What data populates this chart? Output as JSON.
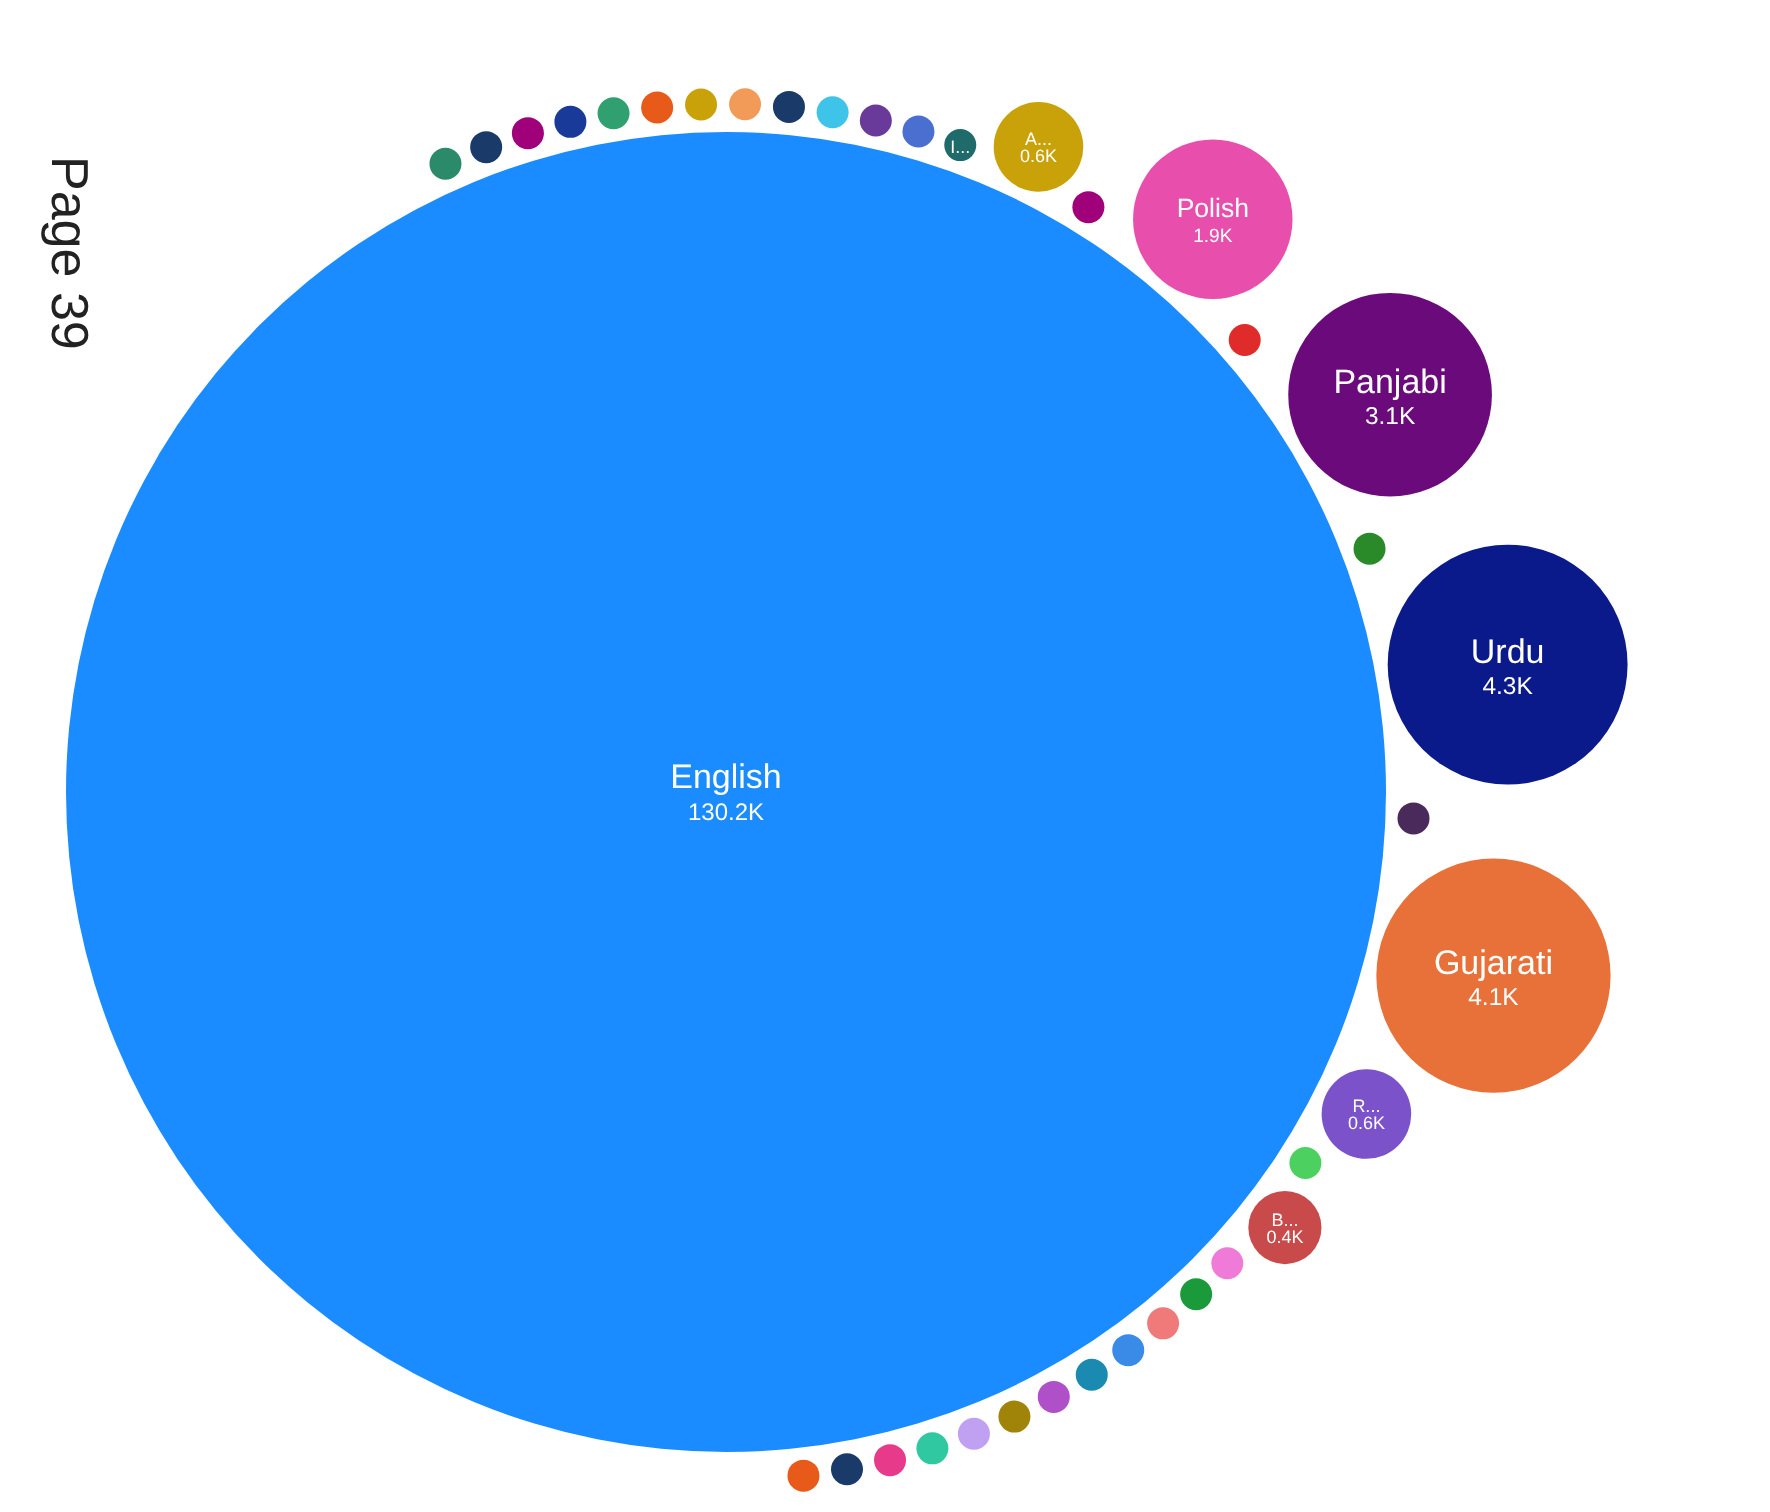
{
  "chart_data": {
    "type": "other",
    "categories": [
      "English",
      null,
      null,
      null,
      null,
      null,
      null,
      null,
      null,
      null,
      null,
      null,
      null,
      "I...",
      "A...",
      null,
      "Polish",
      null,
      "Panjabi",
      null,
      "Urdu",
      null,
      "Gujarati",
      "R...",
      null,
      "B...",
      null,
      null,
      null,
      null,
      null,
      null,
      null,
      null,
      null,
      null,
      null,
      null
    ],
    "values": [
      130.2,
      null,
      null,
      null,
      null,
      null,
      null,
      null,
      null,
      null,
      null,
      null,
      null,
      null,
      0.6,
      null,
      1.9,
      null,
      3.1,
      null,
      4.3,
      null,
      4.1,
      0.6,
      null,
      0.4,
      null,
      null,
      null,
      null,
      null,
      null,
      null,
      null,
      null,
      null,
      null,
      null
    ],
    "value_labels": [
      "130.2K",
      null,
      null,
      null,
      null,
      null,
      null,
      null,
      null,
      null,
      null,
      null,
      null,
      null,
      "0.6K",
      null,
      "1.9K",
      null,
      "3.1K",
      null,
      "4.3K",
      null,
      "4.1K",
      "0.6K",
      null,
      "0.4K",
      null,
      null,
      null,
      null,
      null,
      null,
      null,
      null,
      null,
      null,
      null,
      null
    ],
    "colors": [
      "#1a8cff",
      "#2a8a6a",
      "#1a3a6a",
      "#a0007a",
      "#1a3a9a",
      "#30a070",
      "#e85a1a",
      "#c9a20a",
      "#f29b58",
      "#1a3a6a",
      "#3ec4e8",
      "#6a3a9a",
      "#4a6fd0",
      "#1f6b6b",
      "#c9a20a",
      "#a0007a",
      "#e84fad",
      "#e02b2b",
      "#6b0a7a",
      "#2a8a2a",
      "#0b1a8a",
      "#4a2a5a",
      "#e8713a",
      "#7b52c9",
      "#4cd060",
      "#c94a4a",
      "#f07ad8",
      "#1a9a3a",
      "#f07a7a",
      "#3a8ae8",
      "#1a8ab0",
      "#b050c8",
      "#a0840a",
      "#c0a0f0",
      "#30c8a0",
      "#e83a8a",
      "#1a3a6a",
      "#e85a1a"
    ],
    "annotations": [
      "Page 39"
    ]
  }
}
